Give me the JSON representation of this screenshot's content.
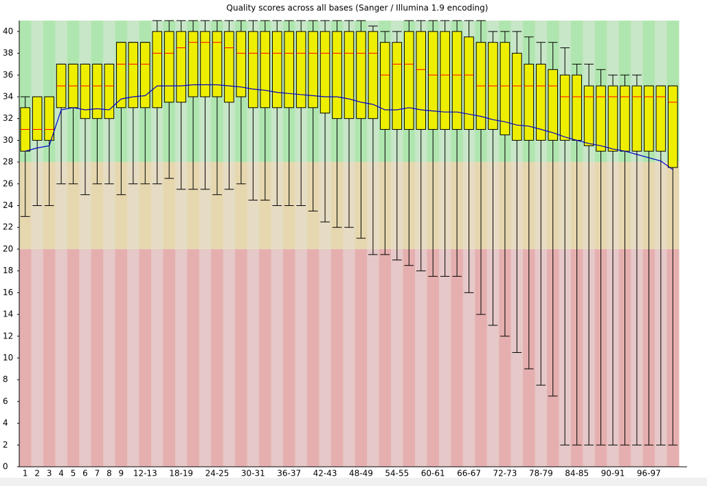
{
  "chart_data": {
    "type": "boxplot",
    "title": "Quality scores across all bases (Sanger / Illumina 1.9 encoding)",
    "categories": [
      "1",
      "2",
      "3",
      "4",
      "5",
      "6",
      "7",
      "8",
      "9",
      null,
      "12-13",
      null,
      null,
      "18-19",
      null,
      null,
      "24-25",
      null,
      null,
      "30-31",
      null,
      null,
      "36-37",
      null,
      null,
      "42-43",
      null,
      null,
      "48-49",
      null,
      null,
      "54-55",
      null,
      null,
      "60-61",
      null,
      null,
      "66-67",
      null,
      null,
      "72-73",
      null,
      null,
      "78-79",
      null,
      null,
      "84-85",
      null,
      null,
      "90-91",
      null,
      null,
      "96-97",
      null,
      null
    ],
    "whisker_low": [
      23,
      24,
      24,
      26,
      26,
      25,
      26,
      26,
      25,
      26,
      26,
      26,
      26.5,
      25.5,
      25.5,
      25.5,
      25,
      25.5,
      26,
      24.5,
      24.5,
      24,
      24,
      24,
      23.5,
      22.5,
      22,
      22,
      21,
      19.5,
      19.5,
      19,
      18.5,
      18,
      17.5,
      17.5,
      17.5,
      16,
      14,
      13,
      12,
      10.5,
      9,
      7.5,
      6.5,
      2,
      2,
      2,
      2,
      2,
      2,
      2,
      2,
      2,
      2
    ],
    "q1": [
      29,
      30,
      30,
      33,
      33,
      32,
      32,
      32,
      33,
      33,
      33,
      33,
      33.5,
      33.5,
      34,
      34,
      34,
      33.5,
      34,
      33,
      33,
      33,
      33,
      33,
      33,
      32.5,
      32,
      32,
      32,
      32,
      31,
      31,
      31,
      31,
      31,
      31,
      31,
      31,
      31,
      31,
      30.5,
      30,
      30,
      30,
      30,
      30,
      30,
      29.5,
      29,
      29,
      29,
      29,
      29,
      29,
      27.5
    ],
    "median": [
      31,
      31,
      31,
      35,
      35,
      35,
      35,
      35,
      37,
      37,
      37,
      38,
      38,
      38.5,
      39,
      39,
      39,
      38.5,
      38,
      38,
      38,
      38,
      38,
      38,
      38,
      38,
      38,
      38,
      38,
      38,
      36,
      37,
      37,
      36.5,
      36,
      36,
      36,
      36,
      35,
      35,
      35,
      35,
      35,
      35,
      35,
      34,
      34,
      34,
      34,
      34,
      34,
      34,
      34,
      34,
      33.5
    ],
    "q3": [
      33,
      34,
      34,
      37,
      37,
      37,
      37,
      37,
      39,
      39,
      39,
      40,
      40,
      40,
      40,
      40,
      40,
      40,
      40,
      40,
      40,
      40,
      40,
      40,
      40,
      40,
      40,
      40,
      40,
      40,
      39,
      39,
      40,
      40,
      40,
      40,
      40,
      39.5,
      39,
      39,
      39,
      38,
      37,
      37,
      36.5,
      36,
      36,
      35,
      35,
      35,
      35,
      35,
      35,
      35,
      35
    ],
    "whisker_high": [
      34,
      34,
      34,
      37,
      37,
      37,
      37,
      37,
      39,
      39,
      39,
      41,
      41,
      41,
      41,
      41,
      41,
      41,
      41,
      41,
      41,
      41,
      41,
      41,
      41,
      41,
      41,
      41,
      41,
      40.5,
      40,
      40,
      41,
      41,
      41,
      41,
      41,
      41,
      41,
      40,
      40,
      40,
      39.5,
      39,
      39,
      38.5,
      37,
      37,
      36.5,
      36,
      36,
      36,
      35,
      35,
      35
    ],
    "mean": [
      29,
      29.3,
      29.5,
      32.8,
      33,
      32.8,
      32.9,
      32.8,
      33.8,
      34,
      34.1,
      35,
      35,
      35,
      35.1,
      35.1,
      35.1,
      35,
      34.9,
      34.7,
      34.6,
      34.4,
      34.3,
      34.2,
      34.1,
      34,
      34,
      33.8,
      33.5,
      33.3,
      32.8,
      32.8,
      33,
      32.8,
      32.7,
      32.6,
      32.6,
      32.4,
      32.2,
      31.9,
      31.7,
      31.4,
      31.3,
      31,
      30.7,
      30.3,
      30,
      29.7,
      29.5,
      29.2,
      29,
      28.7,
      28.4,
      28.1,
      27.3
    ],
    "box_color": "#eeee00",
    "median_color": "#ff0000",
    "mean_color": "#0000cc",
    "zones": [
      {
        "from": 0,
        "to": 20,
        "colors": [
          "#e6afaf",
          "#e6c8c8"
        ]
      },
      {
        "from": 20,
        "to": 28,
        "colors": [
          "#e6d7af",
          "#e6dcc3"
        ]
      },
      {
        "from": 28,
        "to": 41,
        "colors": [
          "#afe6af",
          "#c8e6c8"
        ]
      }
    ],
    "ylim": [
      0,
      41
    ],
    "yticks": [
      0,
      2,
      4,
      6,
      8,
      10,
      12,
      14,
      16,
      18,
      20,
      22,
      24,
      26,
      28,
      30,
      32,
      34,
      36,
      38,
      40
    ]
  }
}
